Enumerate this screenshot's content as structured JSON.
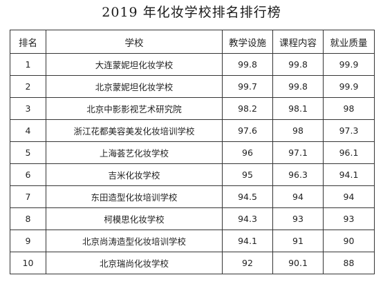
{
  "title": "2019 年化妆学校排名排行榜",
  "table": {
    "headers": [
      "排名",
      "学校",
      "教学设施",
      "课程内容",
      "就业质量"
    ],
    "rows": [
      [
        "1",
        "大连蒙妮坦化妆学校",
        "99.8",
        "99.8",
        "99.9"
      ],
      [
        "2",
        "北京蒙妮坦化妆学校",
        "99.7",
        "99.8",
        "99.9"
      ],
      [
        "3",
        "北京中影影视艺术研究院",
        "98.2",
        "98.1",
        "98"
      ],
      [
        "4",
        "浙江花都美容美发化妆培训学校",
        "97.6",
        "98",
        "97.3"
      ],
      [
        "5",
        "上海荟艺化妆学校",
        "96",
        "97.1",
        "96.1"
      ],
      [
        "6",
        "吉米化妆学校",
        "95",
        "96.3",
        "94.1"
      ],
      [
        "7",
        "东田造型化妆培训学校",
        "94.5",
        "94",
        "94"
      ],
      [
        "8",
        "柯模思化妆学校",
        "94.3",
        "93",
        "93"
      ],
      [
        "9",
        "北京尚涛造型化妆培训学校",
        "94.1",
        "91",
        "90"
      ],
      [
        "10",
        "北京瑞尚化妆学校",
        "92",
        "90.1",
        "88"
      ]
    ]
  }
}
